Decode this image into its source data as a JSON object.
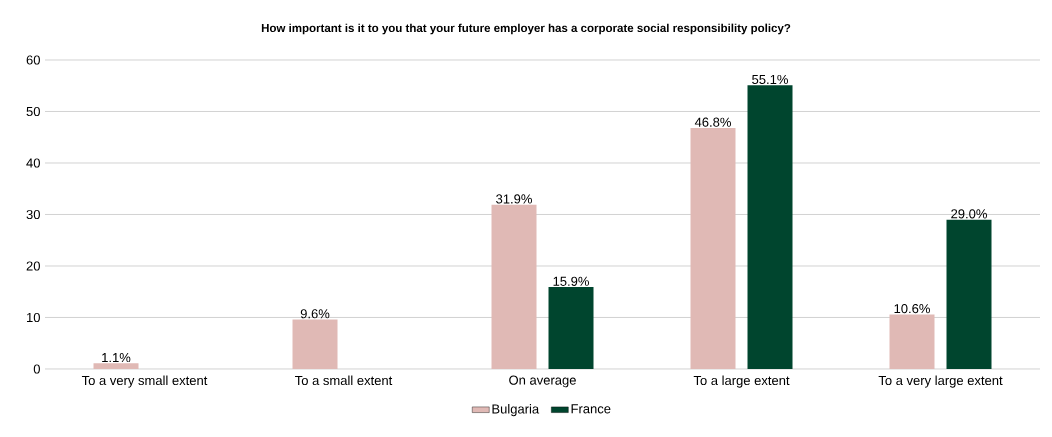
{
  "chart_data": {
    "type": "bar",
    "title": "How important is it to you that your future employer has a corporate social responsibility policy?",
    "categories": [
      "To a very small extent",
      "To a small extent",
      "On average",
      "To a large extent",
      "To a very large extent"
    ],
    "series": [
      {
        "name": "Bulgaria",
        "color": "#e0b9b5",
        "values": [
          1.1,
          9.6,
          31.9,
          46.8,
          10.6
        ],
        "value_labels": [
          "1.1%",
          "9.6%",
          "31.9%",
          "46.8%",
          "10.6%"
        ]
      },
      {
        "name": "France",
        "color": "#00452e",
        "values": [
          null,
          null,
          15.9,
          55.1,
          29.0
        ],
        "value_labels": [
          null,
          null,
          "15.9%",
          "55.1%",
          "29.0%"
        ]
      }
    ],
    "ylim": [
      0,
      60
    ],
    "yticks": [
      0,
      10,
      20,
      30,
      40,
      50,
      60
    ],
    "grid": "y",
    "legend": "bottom"
  }
}
